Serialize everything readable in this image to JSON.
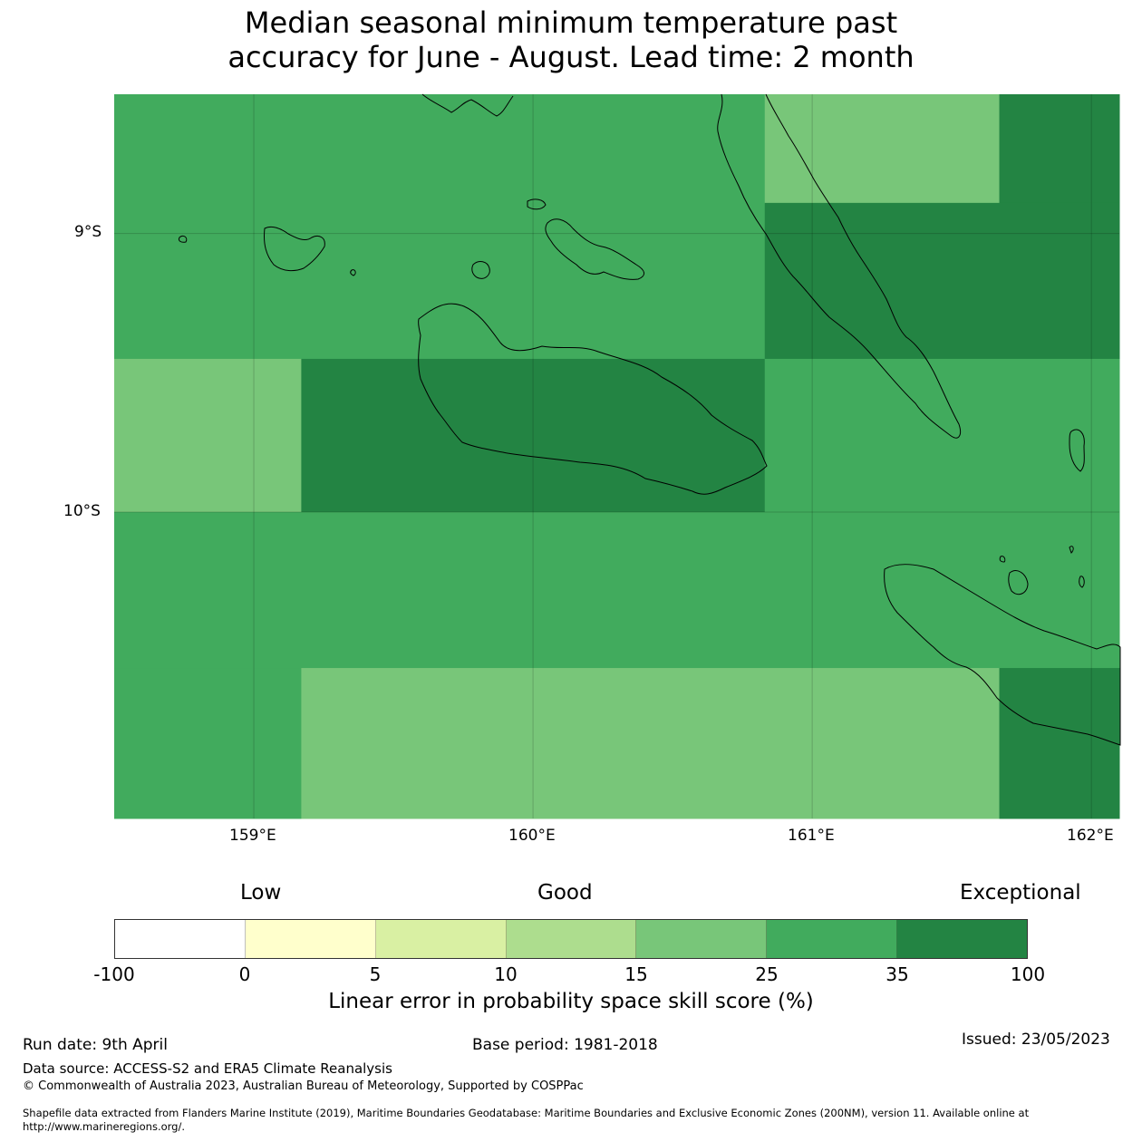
{
  "title_lines": [
    "Median seasonal minimum temperature past",
    "accuracy for June - August. Lead time: 2 month"
  ],
  "map": {
    "lon_range": [
      158.5,
      162.1
    ],
    "lat_range": [
      -11.1,
      -8.5
    ],
    "lon_ticks": [
      "159°E",
      "160°E",
      "161°E",
      "162°E"
    ],
    "lat_ticks": [
      "9°S",
      "10°S"
    ],
    "colors": {
      "exceptional_35_100": "#238443",
      "good_25_35": "#41ab5d",
      "good_15_25": "#78c679"
    },
    "grid_cells": [
      {
        "lon": [
          158.5,
          160.83
        ],
        "lat": [
          -9.45,
          -8.5
        ],
        "category": "25-35"
      },
      {
        "lon": [
          160.83,
          161.67
        ],
        "lat": [
          -8.89,
          -8.5
        ],
        "category": "15-25"
      },
      {
        "lon": [
          161.67,
          162.1
        ],
        "lat": [
          -8.89,
          -8.5
        ],
        "category": "35-100"
      },
      {
        "lon": [
          160.83,
          162.1
        ],
        "lat": [
          -9.45,
          -8.89
        ],
        "category": "35-100"
      },
      {
        "lon": [
          158.5,
          159.17
        ],
        "lat": [
          -10.0,
          -9.45
        ],
        "category": "15-25"
      },
      {
        "lon": [
          159.17,
          160.83
        ],
        "lat": [
          -10.0,
          -9.45
        ],
        "category": "35-100"
      },
      {
        "lon": [
          160.83,
          162.1
        ],
        "lat": [
          -10.0,
          -9.45
        ],
        "category": "25-35"
      },
      {
        "lon": [
          158.5,
          162.1
        ],
        "lat": [
          -10.56,
          -10.0
        ],
        "category": "25-35"
      },
      {
        "lon": [
          158.5,
          159.17
        ],
        "lat": [
          -11.1,
          -10.56
        ],
        "category": "25-35"
      },
      {
        "lon": [
          159.17,
          161.67
        ],
        "lat": [
          -11.1,
          -10.56
        ],
        "category": "15-25"
      },
      {
        "lon": [
          161.67,
          162.1
        ],
        "lat": [
          -11.1,
          -10.56
        ],
        "category": "35-100"
      }
    ]
  },
  "colorbar": {
    "categories": [
      "Low",
      "Good",
      "Exceptional"
    ],
    "ticks": [
      "-100",
      "0",
      "5",
      "10",
      "15",
      "25",
      "35",
      "100"
    ],
    "colors": [
      "#ffffff",
      "#ffffcc",
      "#d9f0a3",
      "#addd8e",
      "#78c679",
      "#41ab5d",
      "#238443"
    ],
    "label": "Linear error in probability space skill score (%)"
  },
  "footer": {
    "run_date": "Run date: 9th April",
    "base_period": "Base period: 1981-2018",
    "issued": "Issued: 23/05/2023",
    "data_source": "Data source: ACCESS-S2 and ERA5 Climate Reanalysis",
    "copyright": "© Commonwealth of Australia 2023, Australian Bureau of Meteorology, Supported by COSPPac",
    "shapefile_line1": "Shapefile data extracted from Flanders Marine Institute (2019), Maritime Boundaries Geodatabase: Maritime Boundaries and Exclusive Economic Zones (200NM), version 11. Available online at",
    "shapefile_line2": "http://www.marineregions.org/."
  }
}
